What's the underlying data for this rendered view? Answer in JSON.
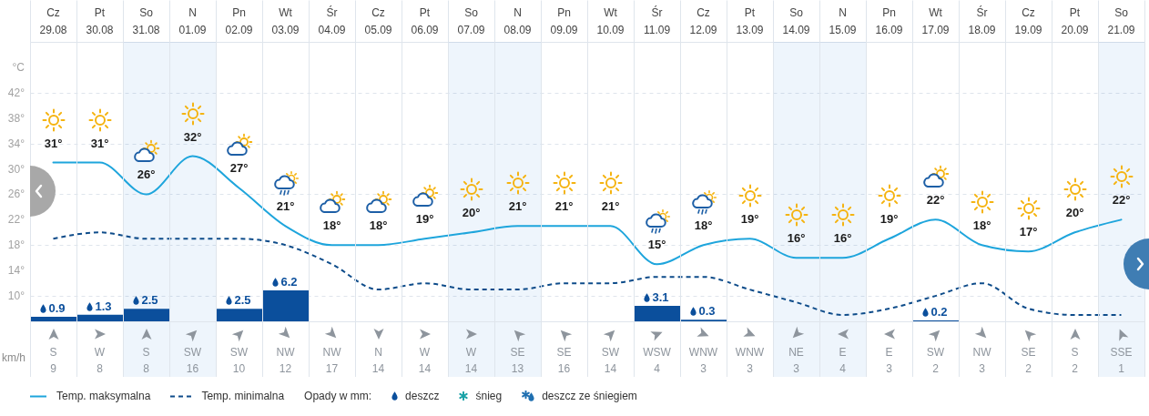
{
  "chart_data": [
    {
      "type": "line",
      "categories": [
        "Cz 29.08",
        "Pt 30.08",
        "So 31.08",
        "N 01.09",
        "Pn 02.09",
        "Wt 03.09",
        "Śr 04.09",
        "Cz 05.09",
        "Pt 06.09",
        "So 07.09",
        "N 08.09",
        "Pn 09.09",
        "Wt 10.09",
        "Śr 11.09",
        "Cz 12.09",
        "Pt 13.09",
        "So 14.09",
        "N 15.09",
        "Pn 16.09",
        "Wt 17.09",
        "Śr 18.09",
        "Cz 19.09",
        "Pt 20.09",
        "So 21.09"
      ],
      "series": [
        {
          "name": "Temp. maksymalna",
          "type": "line",
          "color": "#1ea5dc",
          "values": [
            31,
            31,
            26,
            32,
            27,
            21,
            18,
            18,
            19,
            20,
            21,
            21,
            21,
            15,
            18,
            19,
            16,
            16,
            19,
            22,
            18,
            17,
            20,
            22
          ],
          "value_labels": [
            "31°",
            "31°",
            "26°",
            "32°",
            "27°",
            "21°",
            "18°",
            "18°",
            "19°",
            "20°",
            "21°",
            "21°",
            "21°",
            "15°",
            "18°",
            "19°",
            "16°",
            "16°",
            "19°",
            "22°",
            "18°",
            "17°",
            "20°",
            "22°"
          ]
        },
        {
          "name": "Temp. minimalna",
          "type": "line",
          "line_style": "dashed",
          "color": "#0e4c8a",
          "values": [
            19,
            20,
            19,
            19,
            19,
            18,
            15,
            11,
            12,
            11,
            11,
            12,
            12,
            13,
            13,
            11,
            9,
            7,
            8,
            10,
            12,
            8,
            7,
            7
          ]
        },
        {
          "name": "deszcz",
          "type": "bar",
          "axis": "y2",
          "color": "#0b4f9c",
          "values": [
            0.9,
            1.3,
            2.5,
            null,
            2.5,
            6.2,
            null,
            null,
            null,
            null,
            null,
            null,
            null,
            3.1,
            0.3,
            null,
            null,
            null,
            null,
            0.2,
            null,
            null,
            null,
            null
          ],
          "value_labels": [
            "0.9",
            "1.3",
            "2.5",
            null,
            "2.5",
            "6.2",
            null,
            null,
            null,
            null,
            null,
            null,
            null,
            "3.1",
            "0.3",
            null,
            null,
            null,
            null,
            "0.2",
            null,
            null,
            null,
            null
          ]
        },
        {
          "name": "śnieg",
          "type": "bar",
          "axis": "y2",
          "color": "#1aa3a8",
          "values": [
            null,
            null,
            null,
            null,
            null,
            null,
            null,
            null,
            null,
            null,
            null,
            null,
            null,
            null,
            null,
            null,
            null,
            null,
            null,
            null,
            null,
            null,
            null,
            null
          ]
        },
        {
          "name": "deszcz ze śniegiem",
          "type": "bar",
          "axis": "y2",
          "color": "#1f6fb0",
          "values": [
            null,
            null,
            null,
            null,
            null,
            null,
            null,
            null,
            null,
            null,
            null,
            null,
            null,
            null,
            null,
            null,
            null,
            null,
            null,
            null,
            null,
            null,
            null,
            null
          ]
        }
      ],
      "ylim": [
        6,
        50
      ],
      "yticks": [
        {
          "value": 10,
          "label": "10°"
        },
        {
          "value": 14,
          "label": "14°"
        },
        {
          "value": 18,
          "label": "18°"
        },
        {
          "value": 22,
          "label": "22°"
        },
        {
          "value": 26,
          "label": "26°"
        },
        {
          "value": 30,
          "label": "30°"
        },
        {
          "value": 34,
          "label": "34°"
        },
        {
          "value": 38,
          "label": "38°"
        },
        {
          "value": 42,
          "label": "42°"
        },
        {
          "value": 46,
          "label": "°C"
        }
      ],
      "y2lim": [
        0,
        56
      ],
      "legend_title": "Opady w mm:",
      "grid": true,
      "legend": "bottom",
      "bands": [
        {
          "axis": "x",
          "from": "So 31.08",
          "to": "N 01.09",
          "color": "#eef5fc"
        },
        {
          "axis": "x",
          "from": "So 07.09",
          "to": "N 08.09",
          "color": "#eef5fc"
        },
        {
          "axis": "x",
          "from": "So 14.09",
          "to": "N 15.09",
          "color": "#eef5fc"
        },
        {
          "axis": "x",
          "from": "So 21.09",
          "to": "So 21.09",
          "color": "#eef5fc"
        }
      ]
    },
    {
      "type": "other",
      "categories": [
        "S",
        "W",
        "S",
        "SW",
        "SW",
        "NW",
        "NW",
        "N",
        "W",
        "W",
        "SE",
        "SE",
        "SW",
        "WSW",
        "WNW",
        "WNW",
        "NE",
        "E",
        "E",
        "SW",
        "NW",
        "SE",
        "S",
        "SSE"
      ],
      "values": [
        9,
        8,
        8,
        16,
        10,
        12,
        17,
        14,
        14,
        14,
        13,
        16,
        14,
        4,
        3,
        3,
        3,
        4,
        3,
        2,
        3,
        2,
        2,
        1
      ],
      "ylabel": "km/h",
      "data_labels": true
    }
  ]
}
